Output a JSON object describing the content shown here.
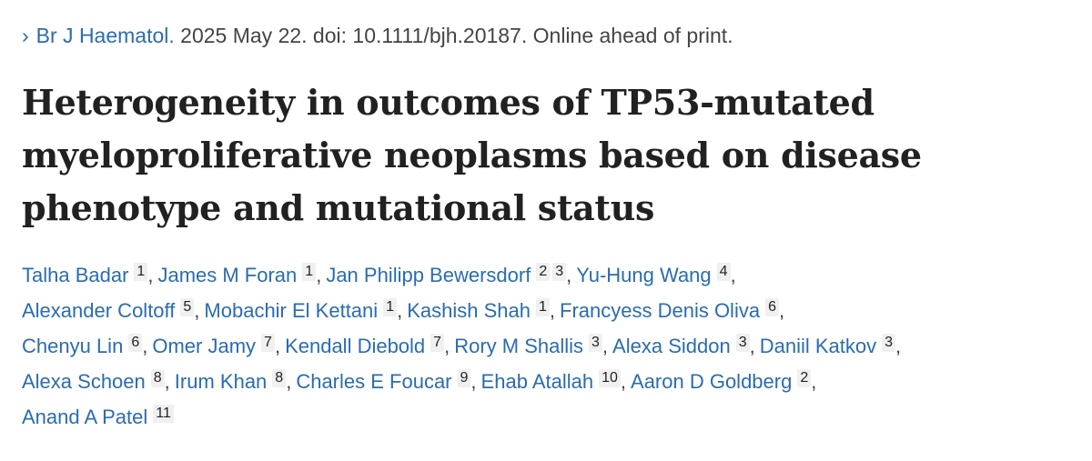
{
  "citation": {
    "chevron": "›",
    "journal": "Br J Haematol.",
    "details": " 2025 May 22. doi: 10.1111/bjh.20187. Online ahead of print."
  },
  "title": {
    "lines": [
      "Heterogeneity in outcomes of TP53-mutated",
      "myeloproliferative neoplasms based on disease",
      "phenotype and mutational status"
    ]
  },
  "authors": {
    "lines": [
      [
        {
          "name": "Talha Badar",
          "affs": [
            "1"
          ]
        },
        {
          "name": "James M Foran",
          "affs": [
            "1"
          ]
        },
        {
          "name": "Jan Philipp Bewersdorf",
          "affs": [
            "2",
            "3"
          ]
        },
        {
          "name": "Yu-Hung Wang",
          "affs": [
            "4"
          ]
        }
      ],
      [
        {
          "name": "Alexander Coltoff",
          "affs": [
            "5"
          ]
        },
        {
          "name": "Mobachir El Kettani",
          "affs": [
            "1"
          ]
        },
        {
          "name": "Kashish Shah",
          "affs": [
            "1"
          ]
        },
        {
          "name": "Francyess Denis Oliva",
          "affs": [
            "6"
          ]
        }
      ],
      [
        {
          "name": "Chenyu Lin",
          "affs": [
            "6"
          ]
        },
        {
          "name": "Omer Jamy",
          "affs": [
            "7"
          ]
        },
        {
          "name": "Kendall Diebold",
          "affs": [
            "7"
          ]
        },
        {
          "name": "Rory M Shallis",
          "affs": [
            "3"
          ]
        },
        {
          "name": "Alexa Siddon",
          "affs": [
            "3"
          ]
        },
        {
          "name": "Daniil Katkov",
          "affs": [
            "3"
          ]
        }
      ],
      [
        {
          "name": "Alexa Schoen",
          "affs": [
            "8"
          ]
        },
        {
          "name": "Irum Khan",
          "affs": [
            "8"
          ]
        },
        {
          "name": "Charles E Foucar",
          "affs": [
            "9"
          ]
        },
        {
          "name": "Ehab Atallah",
          "affs": [
            "10"
          ]
        },
        {
          "name": "Aaron D Goldberg",
          "affs": [
            "2"
          ]
        }
      ],
      [
        {
          "name": "Anand A Patel",
          "affs": [
            "11"
          ]
        }
      ]
    ],
    "separator": ","
  }
}
